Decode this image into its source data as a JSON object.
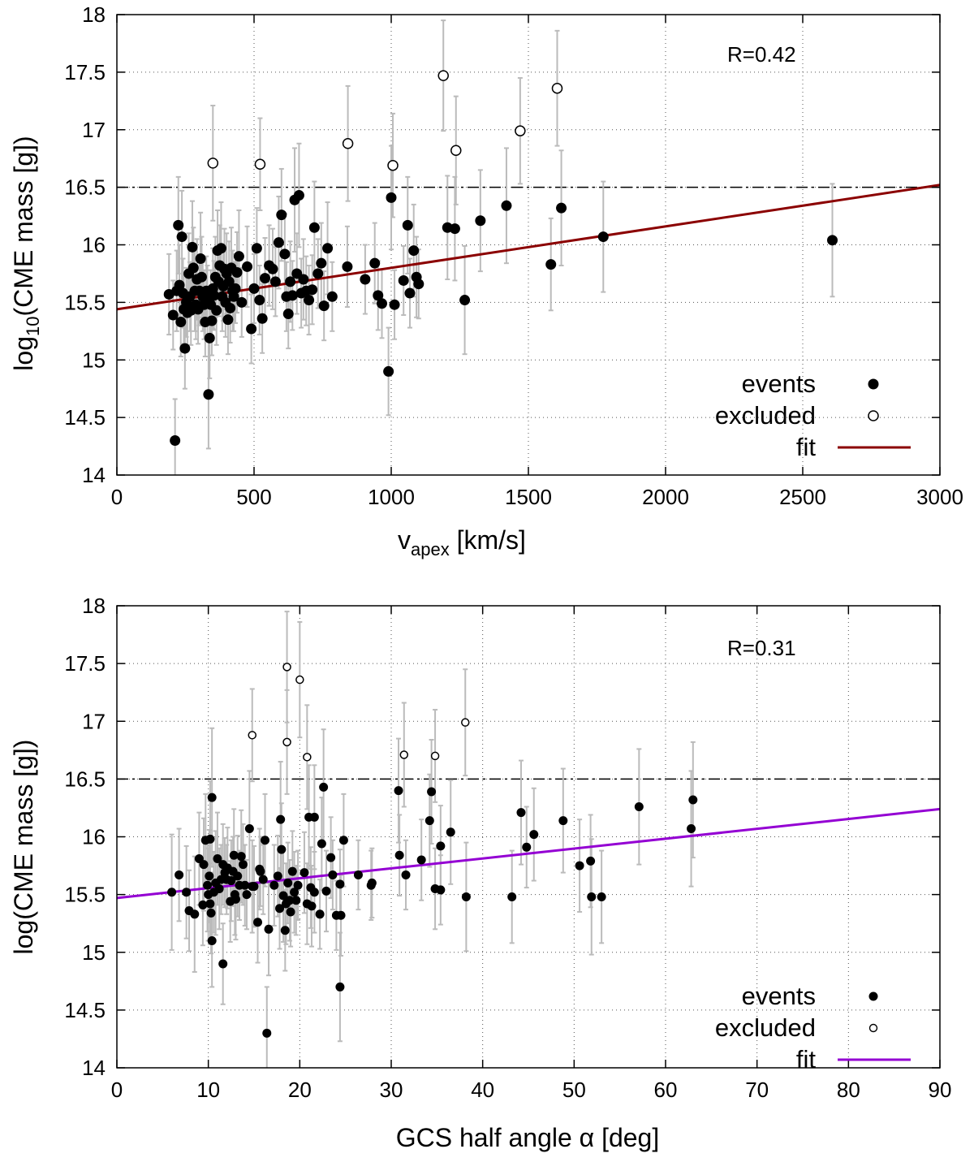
{
  "chart_data": [
    {
      "type": "scatter",
      "xlabel": "v",
      "xlabel_sub": "apex",
      "xlabel_unit": " [km/s]",
      "ylabel": "log",
      "ylabel_sub": "10",
      "ylabel_rest": "(CME mass [g])",
      "xlim": [
        0,
        3000
      ],
      "ylim": [
        14,
        18
      ],
      "xticks": [
        "0",
        "500",
        "1000",
        "1500",
        "2000",
        "2500",
        "3000"
      ],
      "yticks": [
        "14",
        "14.5",
        "15",
        "15.5",
        "16",
        "16.5",
        "17",
        "17.5",
        "18"
      ],
      "grid": true,
      "annotation": "R=0.42",
      "threshold_y": 16.5,
      "fit": {
        "x": [
          0,
          3000
        ],
        "y": [
          15.44,
          16.52
        ],
        "color": "#8b0000",
        "label": "fit"
      },
      "legend": {
        "position": "bottom-right",
        "events": "events",
        "excluded": "excluded",
        "fit": "fit"
      },
      "events": [
        [
          190,
          15.57,
          0.35
        ],
        [
          205,
          15.39,
          0.3
        ],
        [
          212,
          14.3,
          0.36
        ],
        [
          218,
          15.6,
          0.35
        ],
        [
          224,
          16.17,
          0.42
        ],
        [
          228,
          15.65,
          0.35
        ],
        [
          233,
          15.33,
          0.3
        ],
        [
          237,
          16.07,
          0.4
        ],
        [
          241,
          15.58,
          0.3
        ],
        [
          244,
          15.44,
          0.3
        ],
        [
          248,
          15.1,
          0.35
        ],
        [
          253,
          15.5,
          0.3
        ],
        [
          257,
          15.41,
          0.3
        ],
        [
          262,
          15.75,
          0.35
        ],
        [
          266,
          15.55,
          0.3
        ],
        [
          270,
          15.43,
          0.3
        ],
        [
          275,
          15.98,
          0.4
        ],
        [
          279,
          15.8,
          0.35
        ],
        [
          284,
          15.6,
          0.35
        ],
        [
          288,
          15.48,
          0.3
        ],
        [
          292,
          15.7,
          0.35
        ],
        [
          296,
          15.44,
          0.3
        ],
        [
          301,
          15.6,
          0.3
        ],
        [
          305,
          15.88,
          0.4
        ],
        [
          309,
          15.72,
          0.35
        ],
        [
          313,
          15.55,
          0.3
        ],
        [
          318,
          15.48,
          0.3
        ],
        [
          322,
          15.33,
          0.3
        ],
        [
          326,
          15.6,
          0.3
        ],
        [
          330,
          15.52,
          0.3
        ],
        [
          334,
          14.7,
          0.47
        ],
        [
          338,
          15.19,
          0.35
        ],
        [
          342,
          15.48,
          0.3
        ],
        [
          346,
          15.34,
          0.3
        ],
        [
          350,
          15.62,
          0.35
        ],
        [
          354,
          15.56,
          0.3
        ],
        [
          359,
          15.72,
          0.35
        ],
        [
          363,
          15.43,
          0.3
        ],
        [
          367,
          15.95,
          0.35
        ],
        [
          371,
          15.68,
          0.3
        ],
        [
          375,
          15.82,
          0.35
        ],
        [
          380,
          15.97,
          0.4
        ],
        [
          384,
          15.55,
          0.3
        ],
        [
          388,
          15.64,
          0.3
        ],
        [
          392,
          15.79,
          0.35
        ],
        [
          396,
          15.5,
          0.3
        ],
        [
          400,
          15.75,
          0.35
        ],
        [
          405,
          15.35,
          0.3
        ],
        [
          409,
          15.68,
          0.35
        ],
        [
          413,
          15.45,
          0.3
        ],
        [
          417,
          15.8,
          0.35
        ],
        [
          422,
          15.6,
          0.35
        ],
        [
          426,
          15.55,
          0.3
        ],
        [
          432,
          15.62,
          0.3
        ],
        [
          438,
          15.76,
          0.35
        ],
        [
          445,
          15.9,
          0.4
        ],
        [
          455,
          15.5,
          0.3
        ],
        [
          475,
          15.81,
          0.35
        ],
        [
          490,
          15.27,
          0.3
        ],
        [
          500,
          15.62,
          0.3
        ],
        [
          510,
          15.97,
          0.35
        ],
        [
          520,
          15.52,
          0.3
        ],
        [
          530,
          15.36,
          0.3
        ],
        [
          540,
          15.71,
          0.35
        ],
        [
          555,
          15.82,
          0.35
        ],
        [
          568,
          15.79,
          0.35
        ],
        [
          578,
          15.68,
          0.3
        ],
        [
          590,
          16.02,
          0.4
        ],
        [
          600,
          16.26,
          0.4
        ],
        [
          612,
          15.92,
          0.35
        ],
        [
          618,
          15.55,
          0.3
        ],
        [
          625,
          15.4,
          0.3
        ],
        [
          632,
          15.68,
          0.35
        ],
        [
          640,
          15.56,
          0.3
        ],
        [
          648,
          16.39,
          0.45
        ],
        [
          656,
          15.75,
          0.35
        ],
        [
          664,
          16.43,
          0.45
        ],
        [
          672,
          15.58,
          0.3
        ],
        [
          680,
          15.7,
          0.35
        ],
        [
          690,
          15.6,
          0.3
        ],
        [
          700,
          15.52,
          0.3
        ],
        [
          712,
          15.61,
          0.3
        ],
        [
          720,
          16.15,
          0.4
        ],
        [
          733,
          15.75,
          0.3
        ],
        [
          745,
          15.84,
          0.35
        ],
        [
          755,
          15.47,
          0.3
        ],
        [
          768,
          15.97,
          0.4
        ],
        [
          785,
          15.55,
          0.3
        ],
        [
          840,
          15.81,
          0.35
        ],
        [
          905,
          15.7,
          0.3
        ],
        [
          940,
          15.84,
          0.35
        ],
        [
          952,
          15.56,
          0.3
        ],
        [
          966,
          15.49,
          0.3
        ],
        [
          990,
          14.9,
          0.38
        ],
        [
          1000,
          16.41,
          0.45
        ],
        [
          1012,
          15.48,
          0.3
        ],
        [
          1045,
          15.69,
          0.3
        ],
        [
          1060,
          16.17,
          0.42
        ],
        [
          1068,
          15.58,
          0.3
        ],
        [
          1082,
          15.95,
          0.4
        ],
        [
          1092,
          15.72,
          0.35
        ],
        [
          1100,
          15.66,
          0.3
        ],
        [
          1205,
          16.15,
          0.45
        ],
        [
          1232,
          16.14,
          0.45
        ],
        [
          1268,
          15.52,
          0.47
        ],
        [
          1325,
          16.21,
          0.44
        ],
        [
          1420,
          16.34,
          0.5
        ],
        [
          1582,
          15.83,
          0.4
        ],
        [
          1620,
          16.32,
          0.5
        ],
        [
          1773,
          16.07,
          0.48
        ],
        [
          2608,
          16.04,
          0.49
        ]
      ],
      "excluded": [
        [
          350,
          16.71,
          0.5
        ],
        [
          522,
          16.7,
          0.4
        ],
        [
          842,
          16.88,
          0.5
        ],
        [
          1006,
          16.69,
          0.45
        ],
        [
          1190,
          17.47,
          0.48
        ],
        [
          1236,
          16.82,
          0.47
        ],
        [
          1470,
          16.99,
          0.46
        ],
        [
          1605,
          17.36,
          0.5
        ]
      ]
    },
    {
      "type": "scatter",
      "xlabel": "GCS half angle α [deg]",
      "ylabel": "log(CME mass [g])",
      "xlim": [
        0,
        90
      ],
      "ylim": [
        14,
        18
      ],
      "xticks": [
        "0",
        "10",
        "20",
        "30",
        "40",
        "50",
        "60",
        "70",
        "80",
        "90"
      ],
      "yticks": [
        "14",
        "14.5",
        "15",
        "15.5",
        "16",
        "16.5",
        "17",
        "17.5",
        "18"
      ],
      "grid": true,
      "annotation": "R=0.31",
      "threshold_y": 16.5,
      "fit": {
        "x": [
          0,
          90
        ],
        "y": [
          15.47,
          16.24
        ],
        "color": "#9400d3",
        "label": "fit"
      },
      "legend": {
        "position": "bottom-right",
        "events": "events",
        "excluded": "excluded",
        "fit": "fit"
      },
      "events": [
        [
          6.0,
          15.52,
          0.5
        ],
        [
          6.8,
          15.67,
          0.4
        ],
        [
          7.6,
          15.52,
          0.4
        ],
        [
          7.9,
          15.36,
          0.35
        ],
        [
          8.5,
          15.33,
          0.5
        ],
        [
          9.0,
          15.81,
          0.4
        ],
        [
          9.4,
          15.41,
          0.35
        ],
        [
          9.5,
          15.76,
          0.4
        ],
        [
          9.7,
          15.97,
          0.4
        ],
        [
          9.9,
          15.58,
          0.4
        ],
        [
          10.0,
          15.5,
          0.4
        ],
        [
          10.1,
          15.66,
          0.4
        ],
        [
          10.2,
          15.42,
          0.35
        ],
        [
          10.2,
          15.98,
          0.5
        ],
        [
          10.3,
          15.34,
          0.35
        ],
        [
          10.4,
          15.1,
          0.4
        ],
        [
          10.4,
          16.34,
          0.6
        ],
        [
          10.6,
          15.52,
          0.35
        ],
        [
          10.8,
          15.6,
          0.45
        ],
        [
          11.0,
          15.81,
          0.4
        ],
        [
          11.2,
          15.55,
          0.35
        ],
        [
          11.4,
          15.63,
          0.3
        ],
        [
          11.6,
          15.76,
          0.35
        ],
        [
          11.6,
          14.9,
          0.35
        ],
        [
          11.8,
          15.69,
          0.3
        ],
        [
          12.0,
          15.63,
          0.3
        ],
        [
          12.1,
          15.73,
          0.35
        ],
        [
          12.4,
          15.44,
          0.35
        ],
        [
          12.5,
          15.62,
          0.35
        ],
        [
          12.7,
          15.7,
          0.3
        ],
        [
          12.8,
          15.84,
          0.4
        ],
        [
          12.9,
          15.5,
          0.35
        ],
        [
          13.0,
          15.46,
          0.35
        ],
        [
          13.2,
          15.66,
          0.35
        ],
        [
          13.4,
          15.58,
          0.3
        ],
        [
          13.6,
          15.83,
          0.4
        ],
        [
          13.8,
          15.76,
          0.35
        ],
        [
          14.0,
          15.58,
          0.35
        ],
        [
          14.2,
          15.5,
          0.3
        ],
        [
          14.5,
          16.07,
          0.5
        ],
        [
          14.8,
          15.57,
          0.4
        ],
        [
          15.0,
          15.57,
          0.35
        ],
        [
          15.4,
          15.26,
          0.35
        ],
        [
          15.6,
          15.72,
          0.35
        ],
        [
          15.7,
          15.7,
          0.3
        ],
        [
          16.0,
          15.63,
          0.3
        ],
        [
          16.2,
          15.97,
          0.4
        ],
        [
          16.4,
          14.3,
          0.4
        ],
        [
          16.6,
          15.2,
          0.4
        ],
        [
          17.2,
          15.58,
          0.35
        ],
        [
          17.6,
          15.66,
          0.35
        ],
        [
          17.8,
          15.38,
          0.35
        ],
        [
          17.9,
          16.15,
          0.5
        ],
        [
          18.0,
          15.89,
          0.4
        ],
        [
          18.2,
          15.49,
          0.4
        ],
        [
          18.4,
          15.19,
          0.35
        ],
        [
          18.5,
          15.42,
          0.35
        ],
        [
          18.7,
          15.6,
          0.35
        ],
        [
          18.9,
          15.45,
          0.35
        ],
        [
          19.0,
          15.35,
          0.3
        ],
        [
          19.2,
          15.7,
          0.35
        ],
        [
          19.4,
          15.52,
          0.35
        ],
        [
          19.6,
          15.45,
          0.3
        ],
        [
          19.8,
          15.58,
          0.3
        ],
        [
          20.5,
          15.69,
          0.35
        ],
        [
          20.8,
          15.42,
          0.35
        ],
        [
          21.0,
          16.17,
          0.45
        ],
        [
          21.2,
          15.56,
          0.35
        ],
        [
          21.3,
          15.4,
          0.35
        ],
        [
          21.6,
          16.17,
          0.45
        ],
        [
          21.6,
          15.52,
          0.35
        ],
        [
          22.2,
          15.33,
          0.3
        ],
        [
          22.4,
          15.94,
          0.4
        ],
        [
          22.6,
          16.43,
          0.5
        ],
        [
          22.9,
          15.53,
          0.35
        ],
        [
          23.4,
          15.82,
          0.35
        ],
        [
          23.6,
          15.67,
          0.3
        ],
        [
          24.0,
          15.32,
          0.3
        ],
        [
          24.4,
          15.59,
          0.3
        ],
        [
          24.4,
          14.7,
          0.47
        ],
        [
          24.5,
          15.32,
          0.35
        ],
        [
          24.8,
          15.97,
          0.4
        ],
        [
          26.4,
          15.67,
          0.3
        ],
        [
          27.8,
          15.58,
          0.3
        ],
        [
          27.9,
          15.6,
          0.3
        ],
        [
          30.8,
          16.4,
          0.45
        ],
        [
          30.9,
          15.84,
          0.35
        ],
        [
          31.6,
          15.67,
          0.3
        ],
        [
          33.3,
          15.8,
          0.35
        ],
        [
          34.2,
          16.14,
          0.4
        ],
        [
          34.4,
          16.39,
          0.45
        ],
        [
          34.8,
          15.55,
          0.35
        ],
        [
          35.4,
          15.54,
          0.3
        ],
        [
          35.4,
          15.92,
          0.35
        ],
        [
          36.5,
          16.04,
          0.45
        ],
        [
          38.2,
          15.48,
          0.47
        ],
        [
          43.2,
          15.48,
          0.4
        ],
        [
          44.2,
          16.21,
          0.45
        ],
        [
          44.8,
          15.91,
          0.35
        ],
        [
          45.6,
          16.02,
          0.4
        ],
        [
          48.8,
          16.14,
          0.45
        ],
        [
          50.6,
          15.75,
          0.4
        ],
        [
          51.8,
          15.79,
          0.4
        ],
        [
          51.9,
          15.48,
          0.5
        ],
        [
          53.0,
          15.48,
          0.4
        ],
        [
          57.1,
          16.26,
          0.5
        ],
        [
          62.8,
          16.07,
          0.5
        ],
        [
          63.0,
          16.32,
          0.5
        ]
      ],
      "excluded": [
        [
          14.8,
          16.88,
          0.4
        ],
        [
          18.6,
          17.47,
          0.48
        ],
        [
          18.6,
          16.82,
          0.45
        ],
        [
          20.0,
          17.36,
          0.5
        ],
        [
          20.8,
          16.69,
          0.45
        ],
        [
          31.4,
          16.71,
          0.45
        ],
        [
          34.8,
          16.7,
          0.4
        ],
        [
          38.1,
          16.99,
          0.46
        ]
      ]
    }
  ]
}
